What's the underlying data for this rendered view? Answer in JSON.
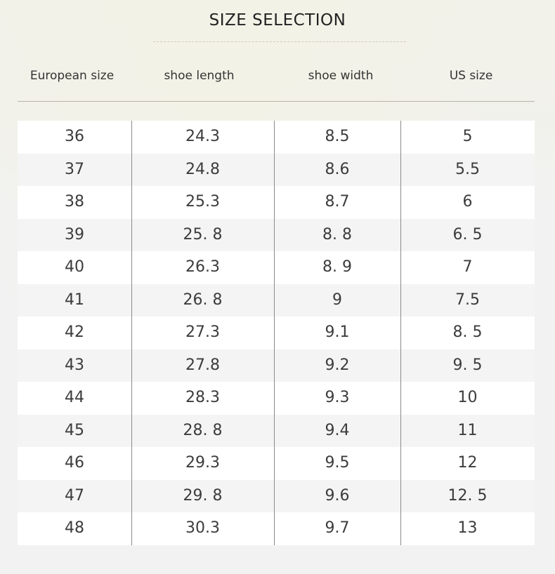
{
  "title": "SIZE SELECTION",
  "columns": [
    "European size",
    "shoe length",
    "shoe width",
    "US size"
  ],
  "rows": [
    [
      "36",
      "24.3",
      "8.5",
      "5"
    ],
    [
      "37",
      "24.8",
      "8.6",
      "5.5"
    ],
    [
      "38",
      "25.3",
      "8.7",
      "6"
    ],
    [
      "39",
      "25. 8",
      "8. 8",
      "6. 5"
    ],
    [
      "40",
      "26.3",
      "8. 9",
      "7"
    ],
    [
      "41",
      "26. 8",
      "9",
      "7.5"
    ],
    [
      "42",
      "27.3",
      "9.1",
      "8. 5"
    ],
    [
      "43",
      "27.8",
      "9.2",
      "9. 5"
    ],
    [
      "44",
      "28.3",
      "9.3",
      "10"
    ],
    [
      "45",
      "28. 8",
      "9.4",
      "11"
    ],
    [
      "46",
      "29.3",
      "9.5",
      "12"
    ],
    [
      "47",
      "29. 8",
      "9.6",
      "12. 5"
    ],
    [
      "48",
      "30.3",
      "9.7",
      "13"
    ]
  ],
  "colors": {
    "row_light": "#ffffff",
    "row_dark": "#f4f4f4",
    "background": "#f2f2f2",
    "text": "#3c3c3c",
    "rule": "#b7b3a6"
  }
}
